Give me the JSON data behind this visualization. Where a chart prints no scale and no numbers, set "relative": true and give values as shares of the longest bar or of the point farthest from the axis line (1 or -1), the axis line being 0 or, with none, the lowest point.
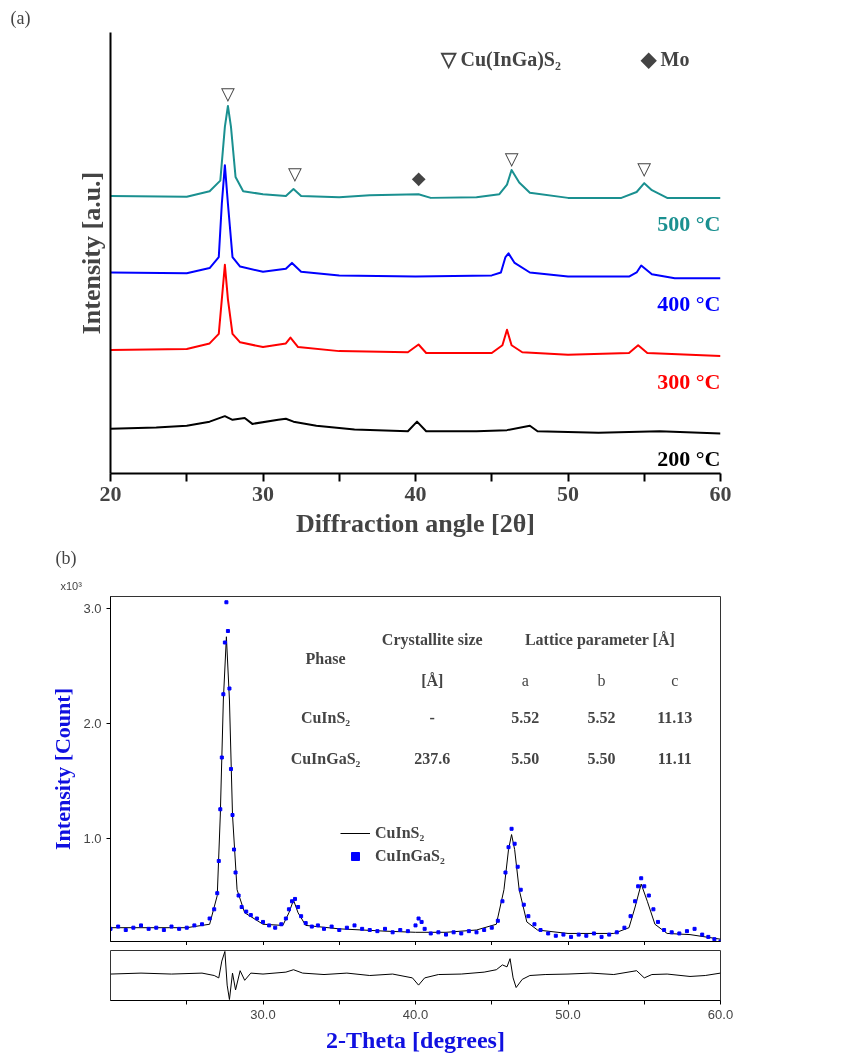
{
  "chart_data": [
    {
      "type": "line",
      "relative": true,
      "xlabel": "Diffraction angle [2θ]",
      "ylabel": "Intensity [a.u.]",
      "xlim": [
        20,
        60
      ],
      "xticks": [
        20,
        {
          "value": 25,
          "label": null
        },
        30,
        {
          "value": 35,
          "label": null
        },
        40,
        {
          "value": 45,
          "label": null
        },
        50,
        {
          "value": 55,
          "label": null
        },
        60
      ],
      "grid": false,
      "legend": false,
      "annotations": [
        "(a)",
        "▽ Cu(InGa)S₂",
        "◆ Mo",
        "▽",
        "▽",
        "◆",
        "▽",
        "▽"
      ],
      "series": [
        {
          "name": "500 °C",
          "color": "#1a9090",
          "x": [
            20,
            25,
            26.5,
            27.2,
            27.5,
            27.7,
            27.9,
            28.2,
            28.7,
            30,
            31.5,
            32.0,
            32.5,
            35,
            37,
            40.2,
            41,
            44,
            45.5,
            46.0,
            46.3,
            46.8,
            47.5,
            50,
            53.5,
            54.5,
            55.0,
            55.5,
            56.5,
            60
          ],
          "values": [
            0.755,
            0.753,
            0.768,
            0.797,
            0.943,
            1.0,
            0.943,
            0.807,
            0.768,
            0.76,
            0.755,
            0.774,
            0.755,
            0.752,
            0.757,
            0.76,
            0.75,
            0.752,
            0.76,
            0.786,
            0.826,
            0.792,
            0.764,
            0.75,
            0.75,
            0.766,
            0.79,
            0.771,
            0.75,
            0.75
          ]
        },
        {
          "name": "400 °C",
          "color": "#0000ff",
          "x": [
            20,
            25,
            26.5,
            27.1,
            27.3,
            27.5,
            27.7,
            28.0,
            28.5,
            30,
            31.5,
            31.9,
            32.5,
            35,
            40,
            45,
            45.6,
            45.9,
            46.1,
            46.5,
            47.5,
            50,
            54,
            54.5,
            54.8,
            55.5,
            57,
            60
          ],
          "values": [
            0.547,
            0.545,
            0.559,
            0.589,
            0.734,
            0.839,
            0.734,
            0.589,
            0.563,
            0.549,
            0.557,
            0.573,
            0.549,
            0.539,
            0.536,
            0.539,
            0.547,
            0.589,
            0.599,
            0.573,
            0.547,
            0.536,
            0.536,
            0.547,
            0.566,
            0.542,
            0.531,
            0.531
          ]
        },
        {
          "name": "300 °C",
          "color": "#ff0000",
          "x": [
            20,
            25,
            26.5,
            27.1,
            27.3,
            27.5,
            27.7,
            28.0,
            28.5,
            30,
            31.5,
            31.8,
            32.3,
            35,
            39.5,
            40.2,
            40.7,
            45,
            45.7,
            46.0,
            46.3,
            47,
            50,
            54,
            54.6,
            55.2,
            60
          ],
          "values": [
            0.336,
            0.339,
            0.354,
            0.38,
            0.474,
            0.568,
            0.474,
            0.38,
            0.357,
            0.344,
            0.354,
            0.37,
            0.344,
            0.333,
            0.33,
            0.351,
            0.328,
            0.328,
            0.349,
            0.391,
            0.349,
            0.33,
            0.323,
            0.328,
            0.349,
            0.328,
            0.32
          ]
        },
        {
          "name": "200 °C",
          "color": "#000000",
          "x": [
            20,
            23,
            25,
            26.5,
            27.5,
            28,
            28.8,
            29.3,
            31,
            31.5,
            32,
            33.5,
            36,
            39.5,
            40.1,
            40.7,
            44,
            46,
            47.5,
            48,
            52,
            56,
            60
          ],
          "values": [
            0.122,
            0.125,
            0.13,
            0.141,
            0.156,
            0.146,
            0.151,
            0.135,
            0.146,
            0.149,
            0.141,
            0.13,
            0.12,
            0.115,
            0.141,
            0.115,
            0.115,
            0.118,
            0.13,
            0.115,
            0.111,
            0.115,
            0.109
          ]
        }
      ]
    },
    {
      "type": "line",
      "ylabel": "Intensity [Count]",
      "xlim": [
        20,
        60
      ],
      "ylim": [
        0.1,
        3.1
      ],
      "xticks": [
        {
          "value": 25,
          "label": null
        },
        {
          "value": 30,
          "label": null
        },
        {
          "value": 35,
          "label": null
        },
        {
          "value": 40,
          "label": null
        },
        {
          "value": 45,
          "label": null
        },
        {
          "value": 50,
          "label": null
        },
        {
          "value": 55,
          "label": null
        }
      ],
      "yticks": [
        {
          "value": 1,
          "label": "1.0"
        },
        {
          "value": 2,
          "label": "2.0"
        },
        {
          "value": 3,
          "label": "3.0"
        }
      ],
      "tick_labels": "y",
      "grid": false,
      "legend": "left",
      "annotations": [
        "(b)",
        "x10³",
        "Phase",
        "Crystallite size",
        "[Å]",
        "Lattice parameter [Å]",
        "a",
        "b",
        "c",
        "CuInS₂",
        "-",
        "5.52",
        "5.52",
        "11.13",
        "CuInGaS₂",
        "237.6",
        "5.50",
        "5.50",
        "11.11"
      ],
      "series": [
        {
          "name": "CuInS₂",
          "type": "line",
          "color": "#000000",
          "x": [
            20,
            25,
            26.5,
            27.0,
            27.2,
            27.4,
            27.6,
            27.8,
            28.0,
            28.3,
            28.8,
            30,
            31.3,
            31.7,
            32.0,
            32.3,
            32.8,
            35,
            38,
            40,
            42,
            44,
            45.3,
            45.8,
            46.1,
            46.3,
            46.5,
            46.8,
            47.3,
            48,
            50,
            53,
            54,
            54.4,
            54.8,
            55.2,
            55.7,
            56.5,
            58,
            60
          ],
          "values": [
            0.22,
            0.22,
            0.25,
            0.5,
            1.2,
            2.2,
            2.75,
            2.2,
            1.2,
            0.55,
            0.35,
            0.25,
            0.24,
            0.35,
            0.46,
            0.35,
            0.24,
            0.21,
            0.19,
            0.18,
            0.18,
            0.2,
            0.25,
            0.55,
            0.9,
            1.03,
            0.9,
            0.55,
            0.27,
            0.2,
            0.17,
            0.17,
            0.22,
            0.4,
            0.6,
            0.45,
            0.25,
            0.17,
            0.16,
            0.12
          ]
        },
        {
          "name": "CuInGaS₂",
          "type": "scatter",
          "marker": "square",
          "color": "#0000ff",
          "x": [
            20.0,
            20.5,
            21.0,
            21.5,
            22.0,
            22.5,
            23.0,
            23.5,
            24.0,
            24.5,
            25.0,
            25.5,
            26.0,
            26.5,
            26.8,
            27.0,
            27.1,
            27.2,
            27.3,
            27.4,
            27.5,
            27.6,
            27.7,
            27.8,
            27.9,
            28.0,
            28.1,
            28.2,
            28.4,
            28.6,
            28.9,
            29.2,
            29.6,
            30.0,
            30.4,
            30.8,
            31.2,
            31.5,
            31.7,
            31.9,
            32.1,
            32.3,
            32.5,
            32.8,
            33.2,
            33.6,
            34.0,
            34.5,
            35.0,
            35.5,
            36.0,
            36.5,
            37.0,
            37.5,
            38.0,
            38.5,
            39.0,
            39.5,
            40.0,
            40.2,
            40.4,
            40.6,
            41.0,
            41.5,
            42.0,
            42.5,
            43.0,
            43.5,
            44.0,
            44.5,
            45.0,
            45.4,
            45.7,
            45.9,
            46.1,
            46.3,
            46.5,
            46.7,
            46.9,
            47.1,
            47.4,
            47.8,
            48.2,
            48.7,
            49.2,
            49.7,
            50.2,
            50.7,
            51.2,
            51.7,
            52.2,
            52.7,
            53.2,
            53.7,
            54.1,
            54.4,
            54.6,
            54.8,
            55.0,
            55.3,
            55.6,
            55.9,
            56.3,
            56.8,
            57.3,
            57.8,
            58.3,
            58.8,
            59.2,
            59.6,
            60.0
          ],
          "values": [
            0.21,
            0.23,
            0.2,
            0.22,
            0.24,
            0.21,
            0.22,
            0.2,
            0.23,
            0.21,
            0.22,
            0.24,
            0.25,
            0.3,
            0.38,
            0.52,
            0.8,
            1.25,
            1.7,
            2.25,
            2.7,
            3.05,
            2.8,
            2.3,
            1.6,
            1.2,
            0.9,
            0.7,
            0.5,
            0.4,
            0.36,
            0.33,
            0.3,
            0.27,
            0.24,
            0.22,
            0.25,
            0.3,
            0.38,
            0.45,
            0.47,
            0.4,
            0.32,
            0.26,
            0.23,
            0.24,
            0.21,
            0.23,
            0.2,
            0.22,
            0.24,
            0.21,
            0.2,
            0.19,
            0.21,
            0.18,
            0.2,
            0.19,
            0.24,
            0.3,
            0.27,
            0.21,
            0.17,
            0.18,
            0.16,
            0.18,
            0.17,
            0.19,
            0.18,
            0.2,
            0.22,
            0.28,
            0.45,
            0.7,
            0.92,
            1.08,
            0.95,
            0.75,
            0.55,
            0.42,
            0.32,
            0.25,
            0.2,
            0.17,
            0.15,
            0.16,
            0.14,
            0.16,
            0.15,
            0.17,
            0.14,
            0.16,
            0.18,
            0.22,
            0.32,
            0.45,
            0.58,
            0.65,
            0.58,
            0.5,
            0.38,
            0.27,
            0.2,
            0.18,
            0.17,
            0.19,
            0.21,
            0.16,
            0.14,
            0.12,
            0.1
          ]
        }
      ]
    },
    {
      "type": "line",
      "relative": true,
      "xlabel": "2-Theta [degrees]",
      "xlim": [
        20,
        60
      ],
      "xticks": [
        {
          "value": 25,
          "label": null
        },
        {
          "value": 30,
          "label": "30.0"
        },
        {
          "value": 35,
          "label": null
        },
        {
          "value": 40,
          "label": "40.0"
        },
        {
          "value": 45,
          "label": null
        },
        {
          "value": 50,
          "label": "50.0"
        },
        {
          "value": 55,
          "label": null
        },
        {
          "value": 60,
          "label": "60.0"
        }
      ],
      "tick_labels": "x",
      "grid": false,
      "series": [
        {
          "color": "#000000",
          "x": [
            20,
            22,
            24,
            26,
            26.8,
            27.1,
            27.3,
            27.5,
            27.65,
            27.8,
            28.0,
            28.2,
            28.5,
            28.8,
            29.2,
            30,
            31.5,
            32.0,
            32.6,
            34,
            35.5,
            37,
            38.5,
            39.8,
            40.2,
            40.6,
            41.5,
            43,
            44.5,
            45.3,
            45.7,
            46.0,
            46.2,
            46.4,
            46.6,
            47.0,
            47.5,
            48.5,
            50,
            51.5,
            53,
            54.5,
            55.0,
            55.5,
            56.5,
            58,
            59,
            60
          ],
          "values": [
            0.53,
            0.55,
            0.53,
            0.55,
            0.5,
            0.45,
            0.8,
            1.0,
            0.3,
            0.0,
            0.55,
            0.2,
            0.6,
            0.4,
            0.55,
            0.53,
            0.57,
            0.62,
            0.55,
            0.52,
            0.55,
            0.5,
            0.53,
            0.45,
            0.3,
            0.45,
            0.52,
            0.53,
            0.57,
            0.62,
            0.72,
            0.68,
            0.85,
            0.45,
            0.25,
            0.42,
            0.5,
            0.52,
            0.53,
            0.55,
            0.52,
            0.6,
            0.45,
            0.52,
            0.53,
            0.48,
            0.5,
            0.55
          ]
        }
      ]
    }
  ]
}
